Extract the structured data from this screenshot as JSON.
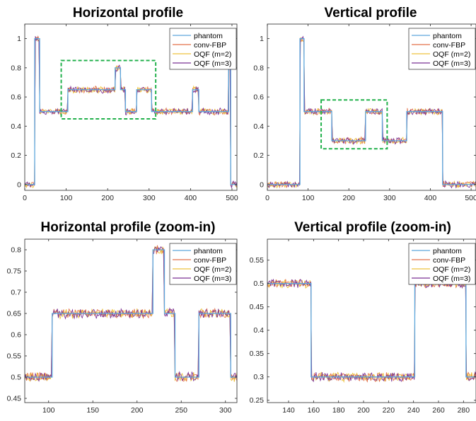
{
  "colors": {
    "phantom": "#5da7dc",
    "conv_fbp": "#e3714b",
    "oqf_m2": "#edc23e",
    "oqf_m3": "#7b3294",
    "zoom_box": "#22b14c"
  },
  "chart_data": [
    {
      "type": "line",
      "title": "Horizontal profile",
      "xlim": [
        0,
        512
      ],
      "ylim": [
        -0.04,
        1.1
      ],
      "xticks": [
        0,
        100,
        200,
        300,
        400,
        500
      ],
      "yticks": [
        0,
        0.2,
        0.4,
        0.6,
        0.8,
        1
      ],
      "xtick_labels": [
        "0",
        "100",
        "200",
        "300",
        "400",
        "500"
      ],
      "ytick_labels": [
        "0",
        "0.2",
        "0.4",
        "0.6",
        "0.8",
        "1"
      ],
      "legend_position": "top-right",
      "noise": 0.014,
      "zoom_box": {
        "x": [
          88,
          316
        ],
        "y": [
          0.45,
          0.85
        ]
      },
      "series": [
        {
          "name": "phantom",
          "x": [
            0,
            24,
            24,
            36,
            36,
            104,
            104,
            218,
            218,
            231,
            231,
            243,
            243,
            270,
            270,
            306,
            306,
            405,
            405,
            420,
            420,
            492,
            492,
            497,
            497,
            512
          ],
          "y": [
            0,
            0,
            1,
            1,
            0.5,
            0.5,
            0.65,
            0.65,
            0.8,
            0.8,
            0.65,
            0.65,
            0.5,
            0.5,
            0.65,
            0.65,
            0.5,
            0.5,
            0.65,
            0.65,
            0.5,
            0.5,
            1,
            1,
            0,
            0
          ]
        },
        {
          "name": "conv-FBP"
        },
        {
          "name": "OQF (m=2)"
        },
        {
          "name": "OQF (m=3)"
        }
      ]
    },
    {
      "type": "line",
      "title": "Vertical profile",
      "xlim": [
        0,
        512
      ],
      "ylim": [
        -0.04,
        1.1
      ],
      "xticks": [
        0,
        100,
        200,
        300,
        400,
        500
      ],
      "yticks": [
        0,
        0.2,
        0.4,
        0.6,
        0.8,
        1
      ],
      "xtick_labels": [
        "0",
        "100",
        "200",
        "300",
        "400",
        "500"
      ],
      "ytick_labels": [
        "0",
        "0.2",
        "0.4",
        "0.6",
        "0.8",
        "1"
      ],
      "legend_position": "top-right",
      "noise": 0.014,
      "zoom_box": {
        "x": [
          132,
          294
        ],
        "y": [
          0.245,
          0.58
        ]
      },
      "series": [
        {
          "name": "phantom",
          "x": [
            0,
            80,
            80,
            90,
            90,
            158,
            158,
            241,
            241,
            282,
            282,
            342,
            342,
            430,
            430,
            512
          ],
          "y": [
            0,
            0,
            1,
            1,
            0.5,
            0.5,
            0.3,
            0.3,
            0.5,
            0.5,
            0.3,
            0.3,
            0.5,
            0.5,
            0,
            0
          ]
        },
        {
          "name": "conv-FBP"
        },
        {
          "name": "OQF (m=2)"
        },
        {
          "name": "OQF (m=3)"
        }
      ]
    },
    {
      "type": "line",
      "title": "Horizontal profile (zoom-in)",
      "xlim": [
        73,
        313
      ],
      "ylim": [
        0.44,
        0.825
      ],
      "xticks": [
        100,
        150,
        200,
        250,
        300
      ],
      "yticks": [
        0.45,
        0.5,
        0.55,
        0.6,
        0.65,
        0.7,
        0.75,
        0.8
      ],
      "xtick_labels": [
        "100",
        "150",
        "200",
        "250",
        "300"
      ],
      "ytick_labels": [
        "0.45",
        "0.5",
        "0.55",
        "0.6",
        "0.65",
        "0.7",
        "0.75",
        "0.8"
      ],
      "legend_position": "top-right",
      "noise": 0.007,
      "series": [
        {
          "name": "phantom",
          "x": [
            73,
            104,
            104,
            218,
            218,
            231,
            231,
            243,
            243,
            270,
            270,
            306,
            306,
            313
          ],
          "y": [
            0.5,
            0.5,
            0.65,
            0.65,
            0.8,
            0.8,
            0.65,
            0.65,
            0.5,
            0.5,
            0.65,
            0.65,
            0.5,
            0.5
          ]
        },
        {
          "name": "conv-FBP"
        },
        {
          "name": "OQF (m=2)"
        },
        {
          "name": "OQF (m=3)"
        }
      ]
    },
    {
      "type": "line",
      "title": "Vertical profile (zoom-in)",
      "xlim": [
        123,
        290
      ],
      "ylim": [
        0.245,
        0.595
      ],
      "xticks": [
        140,
        160,
        180,
        200,
        220,
        240,
        260,
        280
      ],
      "yticks": [
        0.25,
        0.3,
        0.35,
        0.4,
        0.45,
        0.5,
        0.55
      ],
      "xtick_labels": [
        "140",
        "160",
        "180",
        "200",
        "220",
        "240",
        "260",
        "280"
      ],
      "ytick_labels": [
        "0.25",
        "0.3",
        "0.35",
        "0.4",
        "0.45",
        "0.5",
        "0.55"
      ],
      "legend_position": "top-right",
      "noise": 0.006,
      "series": [
        {
          "name": "phantom",
          "x": [
            123,
            158,
            158,
            241,
            241,
            282,
            282,
            290
          ],
          "y": [
            0.5,
            0.5,
            0.3,
            0.3,
            0.5,
            0.5,
            0.3,
            0.3
          ]
        },
        {
          "name": "conv-FBP"
        },
        {
          "name": "OQF (m=2)"
        },
        {
          "name": "OQF (m=3)"
        }
      ]
    }
  ]
}
